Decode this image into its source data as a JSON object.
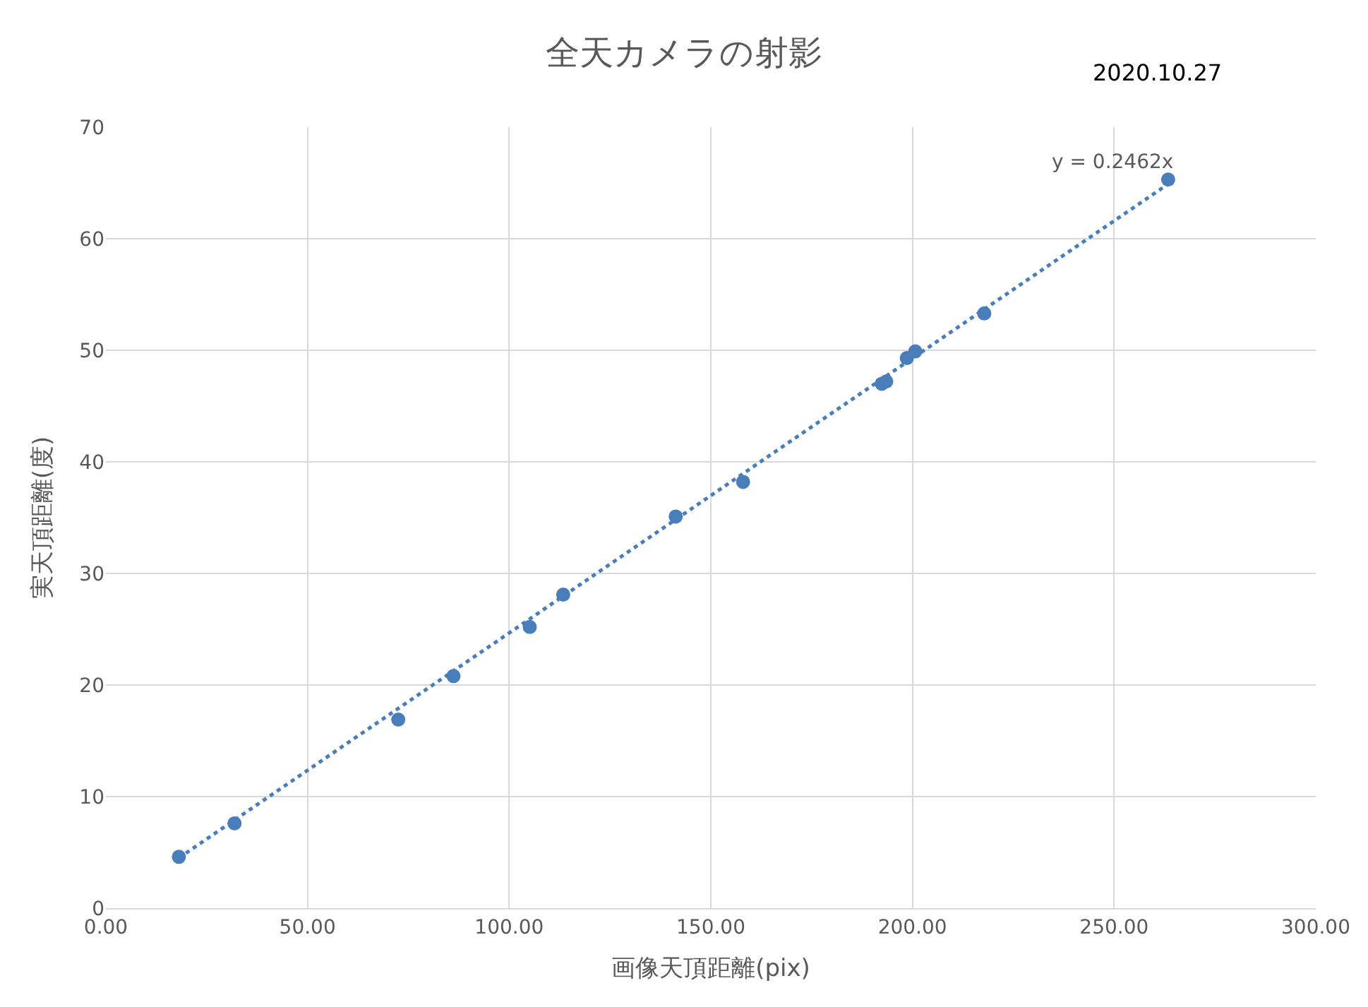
{
  "chart_data": {
    "type": "scatter",
    "title": "全天カメラの射影",
    "xlabel": "画像天頂距離(pix)",
    "ylabel": "実天頂距離(度)",
    "x": [
      18.1,
      31.9,
      72.5,
      86.2,
      105.1,
      113.4,
      141.3,
      158.0,
      192.4,
      193.5,
      198.6,
      200.7,
      217.8,
      263.4
    ],
    "series": [
      {
        "color": "#4a7ebb",
        "values": [
          4.6,
          7.6,
          16.9,
          20.8,
          25.2,
          28.1,
          35.1,
          38.2,
          47.0,
          47.2,
          49.3,
          49.9,
          53.3,
          65.3
        ],
        "marker": "circle"
      },
      {
        "type": "line",
        "color": "#4a7ebb",
        "x": [
          18.1,
          263.4
        ],
        "values": [
          4.5,
          64.9
        ],
        "line_style": "dotted",
        "marker": "none"
      }
    ],
    "annotations": [
      "y = 0.2462x",
      "2020.10.27"
    ],
    "xlim": [
      0,
      300
    ],
    "ylim": [
      0,
      70
    ],
    "xticks": [
      {
        "value": 0,
        "label": "0.00"
      },
      {
        "value": 50,
        "label": "50.00"
      },
      {
        "value": 100,
        "label": "100.00"
      },
      {
        "value": 150,
        "label": "150.00"
      },
      {
        "value": 200,
        "label": "200.00"
      },
      {
        "value": 250,
        "label": "250.00"
      },
      {
        "value": 300,
        "label": "300.00"
      }
    ],
    "yticks": [
      0,
      10,
      20,
      30,
      40,
      50,
      60,
      70
    ],
    "grid": true
  }
}
